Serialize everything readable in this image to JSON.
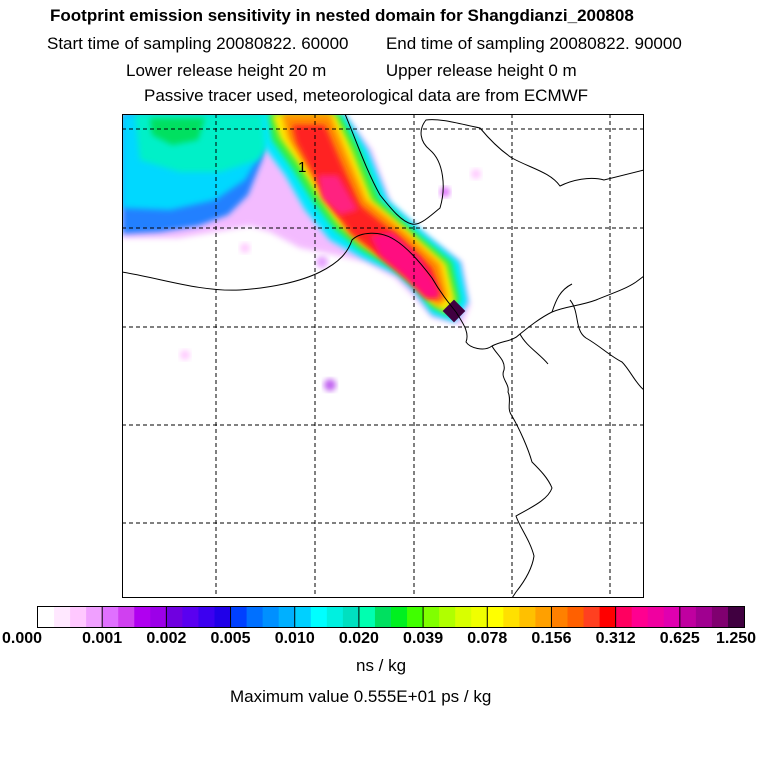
{
  "header": {
    "title": "Footprint emission sensitivity in nested domain for Shangdianzi_200808",
    "start_label": "Start time of sampling 20080822. 60000",
    "end_label": "End time of sampling 20080822. 90000",
    "lower_label": "Lower release height   20 m",
    "upper_label": "Upper release height    0 m",
    "info": "Passive tracer used, meteorological data are from ECMWF"
  },
  "map": {
    "plume_label": "1"
  },
  "colorbar": {
    "ticks": [
      "0.000",
      "0.001",
      "0.002",
      "0.005",
      "0.010",
      "0.020",
      "0.039",
      "0.078",
      "0.156",
      "0.312",
      "0.625",
      "1.250"
    ],
    "colors": [
      "#ffffff",
      "#ffe8ff",
      "#ffc8ff",
      "#f0a0ff",
      "#e070ff",
      "#d040f0",
      "#b000f0",
      "#9c00e8",
      "#7000e0",
      "#5a00f0",
      "#3c00f0",
      "#2000e8",
      "#0040ff",
      "#0070ff",
      "#0090ff",
      "#00b0ff",
      "#00d0ff",
      "#00ffff",
      "#00f0e0",
      "#00e0c0",
      "#00ffb0",
      "#00e060",
      "#00f020",
      "#40ff00",
      "#80ff00",
      "#b0ff00",
      "#d8ff00",
      "#f0ff00",
      "#ffff00",
      "#ffe000",
      "#ffc000",
      "#ffa000",
      "#ff8000",
      "#ff6000",
      "#ff4020",
      "#ff0000",
      "#ff0060",
      "#ff0090",
      "#f000a0",
      "#e000b0",
      "#c000a0",
      "#a00090",
      "#800070",
      "#400040"
    ],
    "units": "ns / kg"
  },
  "footer": {
    "max_value": "Maximum value  0.555E+01 ps / kg"
  }
}
